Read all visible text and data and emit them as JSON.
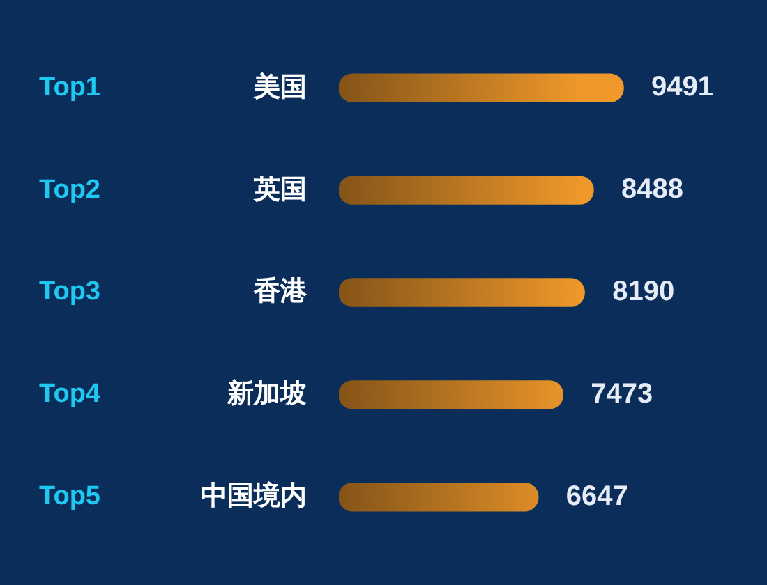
{
  "chart_data": {
    "type": "bar",
    "orientation": "horizontal",
    "categories": [
      "美国",
      "英国",
      "香港",
      "新加坡",
      "中国境内"
    ],
    "values": [
      9491,
      8488,
      8190,
      7473,
      6647
    ],
    "color": "#f0992a",
    "data_labels": true,
    "annotations": [
      "Top1",
      "Top2",
      "Top3",
      "Top4",
      "Top5"
    ]
  }
}
